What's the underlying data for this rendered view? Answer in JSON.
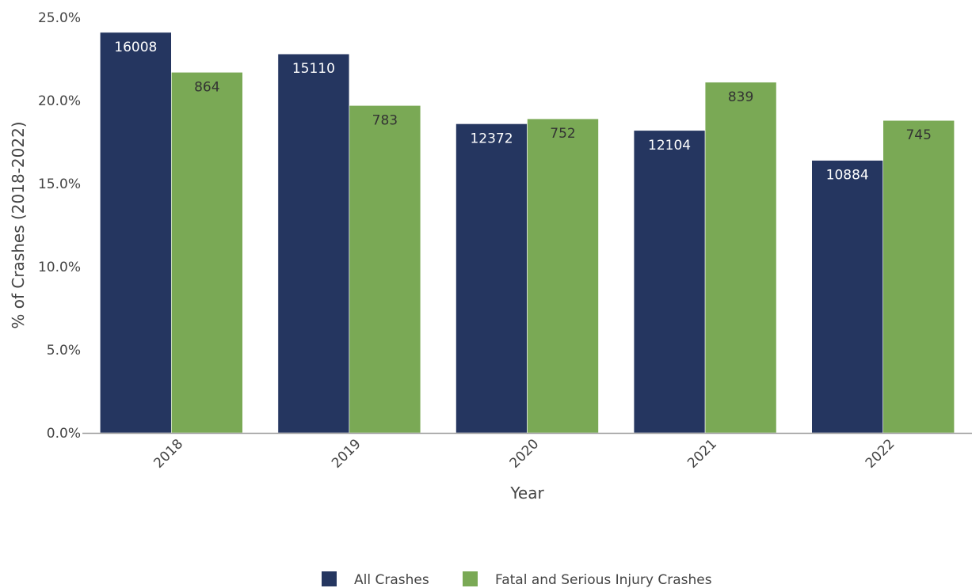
{
  "chart_data": {
    "type": "bar",
    "title": "",
    "xlabel": "Year",
    "ylabel": "% of Crashes (2018-2022)",
    "categories": [
      "2018",
      "2019",
      "2020",
      "2021",
      "2022"
    ],
    "ylim": [
      0,
      25
    ],
    "yticks": [
      "0.0%",
      "5.0%",
      "10.0%",
      "15.0%",
      "20.0%",
      "25.0%"
    ],
    "series": [
      {
        "name": "All Crashes",
        "color": "#253660",
        "label_color": "#ffffff",
        "values": [
          24.1,
          22.8,
          18.6,
          18.2,
          16.4
        ],
        "labels": [
          "16008",
          "15110",
          "12372",
          "12104",
          "10884"
        ]
      },
      {
        "name": "Fatal and Serious Injury Crashes",
        "color": "#7aa955",
        "label_color": "#333333",
        "values": [
          21.7,
          19.7,
          18.9,
          21.1,
          18.8
        ],
        "labels": [
          "864",
          "783",
          "752",
          "839",
          "745"
        ]
      }
    ],
    "grid": false,
    "legend_position": "bottom-center"
  }
}
